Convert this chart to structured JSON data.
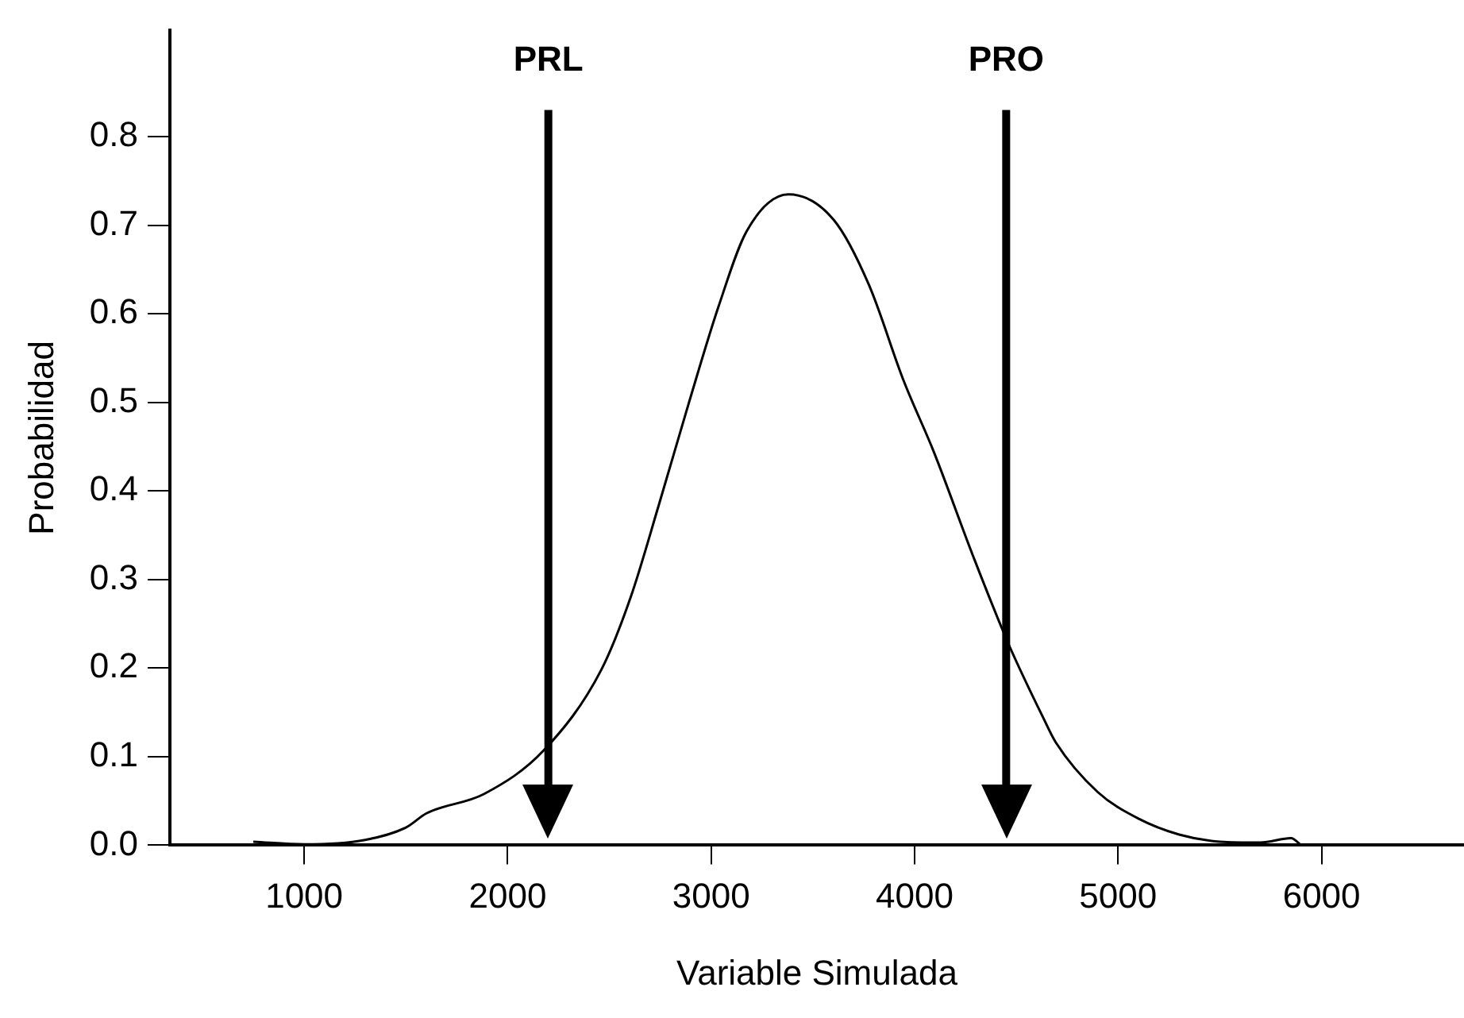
{
  "chart_data": {
    "type": "line",
    "xlabel": "Variable Simulada",
    "ylabel": "Probabilidad",
    "x": [
      750,
      1000,
      1300,
      1500,
      1601,
      1885,
      2177,
      2460,
      2606,
      2744,
      2890,
      3036,
      3174,
      3380,
      3603,
      3775,
      3947,
      4093,
      4290,
      4462,
      4634,
      4694,
      4900,
      5100,
      5300,
      5500,
      5700,
      5850,
      5900
    ],
    "series": [
      {
        "color": "#000000",
        "values": [
          0.004,
          0.001,
          0.006,
          0.02,
          0.036,
          0.058,
          0.107,
          0.198,
          0.281,
          0.385,
          0.499,
          0.608,
          0.693,
          0.735,
          0.706,
          0.633,
          0.524,
          0.445,
          0.325,
          0.227,
          0.143,
          0.116,
          0.06,
          0.03,
          0.012,
          0.004,
          0.003,
          0.008,
          0.0
        ]
      }
    ],
    "xlim": [
      340,
      6700
    ],
    "xticks": [
      1000,
      2000,
      3000,
      4000,
      5000,
      6000
    ],
    "ylim": [
      0,
      0.92
    ],
    "yticks": [
      {
        "value": 0,
        "label": "0.0"
      },
      0.1,
      0.2,
      0.3,
      0.4,
      0.5,
      0.6,
      0.7,
      0.8
    ],
    "ref_lines": [
      {
        "axis": "x",
        "value": 2200,
        "label": "PRL"
      },
      {
        "axis": "x",
        "value": 4450,
        "label": "PRO"
      }
    ],
    "grid": false,
    "legend": false,
    "marker": "none",
    "line_style": "solid"
  }
}
